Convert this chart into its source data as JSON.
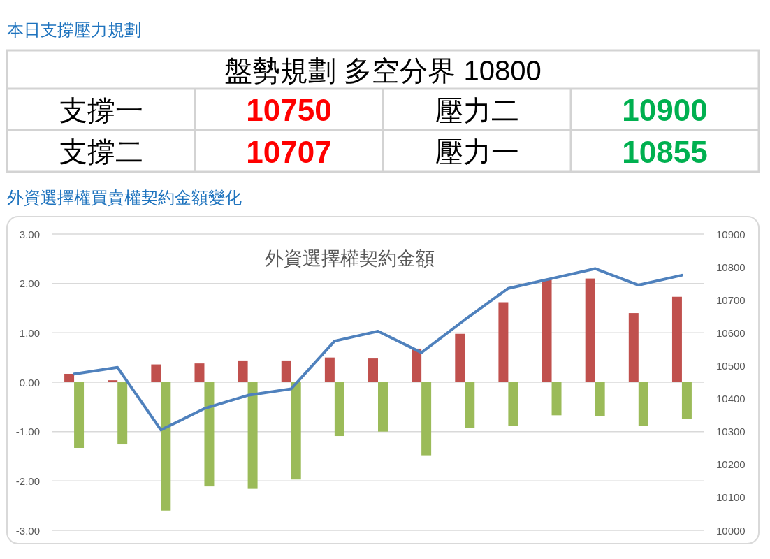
{
  "chart_data": [
    {
      "type": "other",
      "title": "本日支撐壓力規劃",
      "subtitle": "盤勢規劃 多空分界 10800",
      "categories": [
        "支撐一",
        "壓力二",
        "支撐二",
        "壓力一"
      ],
      "values": [
        10750,
        10900,
        10707,
        10855
      ],
      "colors": [
        "#ff0000",
        "#00b050",
        "#ff0000",
        "#00b050"
      ],
      "data_labels": true
    },
    {
      "type": "bar",
      "title": "外資選擇權買賣權契約金額變化",
      "subtitle": "外資選擇權契約金額",
      "categories": [
        null,
        null,
        null,
        null,
        null,
        null,
        null,
        null,
        null,
        null,
        null,
        null,
        null,
        null,
        null
      ],
      "series": [
        {
          "color": "#c0504d",
          "values": [
            0.17,
            0.04,
            0.36,
            0.38,
            0.44,
            0.44,
            0.5,
            0.48,
            0.68,
            0.98,
            1.62,
            2.08,
            2.1,
            1.4,
            1.73
          ]
        },
        {
          "color": "#9bbb59",
          "values": [
            -1.33,
            -1.26,
            -2.6,
            -2.11,
            -2.16,
            -1.97,
            -1.09,
            -1.0,
            -1.48,
            -0.92,
            -0.89,
            -0.67,
            -0.69,
            -0.89,
            -0.75
          ]
        },
        {
          "type": "line",
          "axis": "y2",
          "color": "#4f81bd",
          "values": [
            10475,
            10495,
            10305,
            10370,
            10410,
            10430,
            10575,
            10605,
            10540,
            10640,
            10735,
            10765,
            10795,
            10745,
            10775
          ]
        }
      ],
      "ylim": [
        -3,
        3
      ],
      "yticks": [
        {
          "value": -3,
          "label": "-3.00"
        },
        {
          "value": -2,
          "label": "-2.00"
        },
        {
          "value": -1,
          "label": "-1.00"
        },
        {
          "value": 0,
          "label": "0.00"
        },
        {
          "value": 1,
          "label": "1.00"
        },
        {
          "value": 2,
          "label": "2.00"
        },
        {
          "value": 3,
          "label": "3.00"
        }
      ],
      "y2lim": [
        10000,
        10900
      ],
      "y2ticks": [
        10000,
        10100,
        10200,
        10300,
        10400,
        10500,
        10600,
        10700,
        10800,
        10900
      ],
      "grid": "y",
      "line_style": "solid"
    }
  ]
}
